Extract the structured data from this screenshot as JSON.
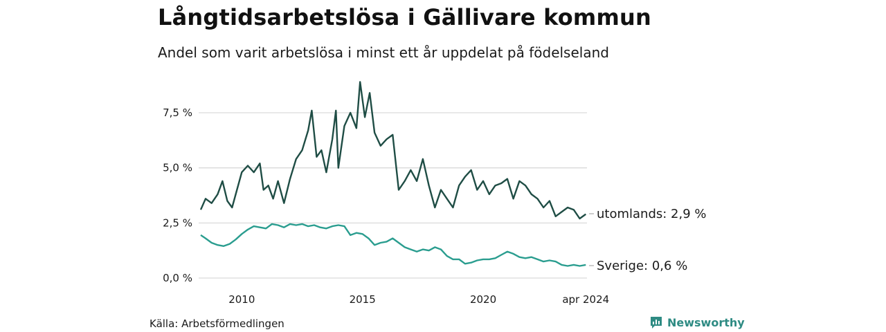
{
  "title": "Långtidsarbetslösa i Gällivare kommun",
  "subtitle": "Andel som varit arbetslösa i minst ett år uppdelat på födelseland",
  "source": "Källa: Arbetsförmedlingen",
  "brand": "Newsworthy",
  "colors": {
    "foreign": "#1f4d45",
    "sweden": "#2a9d8f",
    "grid": "#d9d9d9",
    "brand": "#2e8b83"
  },
  "icons": {
    "brand": "newsworthy-logo-icon"
  },
  "chart_data": {
    "type": "line",
    "title": "Långtidsarbetslösa i Gällivare kommun",
    "ylabel": "",
    "xlabel": "",
    "ylim": [
      0,
      8.8
    ],
    "xlim": [
      2008.3,
      2024.3
    ],
    "y_ticks": [
      0,
      2.5,
      5.0,
      7.5
    ],
    "y_tick_labels": [
      "0,0 %",
      "2,5 %",
      "5,0 %",
      "7,5 %"
    ],
    "x_ticks": [
      2010,
      2015,
      2020,
      2024.25
    ],
    "x_tick_labels": [
      "2010",
      "2015",
      "2020",
      "apr 2024"
    ],
    "series": [
      {
        "name": "utomlands",
        "end_label": "utomlands: 2,9 %",
        "x": [
          2008.3,
          2008.5,
          2008.75,
          2009.0,
          2009.2,
          2009.4,
          2009.6,
          2009.8,
          2010.0,
          2010.25,
          2010.5,
          2010.75,
          2010.9,
          2011.1,
          2011.3,
          2011.5,
          2011.75,
          2012.0,
          2012.25,
          2012.5,
          2012.75,
          2012.9,
          2013.1,
          2013.3,
          2013.5,
          2013.75,
          2013.9,
          2014.0,
          2014.25,
          2014.5,
          2014.75,
          2014.9,
          2015.1,
          2015.3,
          2015.5,
          2015.75,
          2016.0,
          2016.25,
          2016.5,
          2016.75,
          2017.0,
          2017.25,
          2017.5,
          2017.75,
          2018.0,
          2018.25,
          2018.5,
          2018.75,
          2019.0,
          2019.25,
          2019.5,
          2019.75,
          2020.0,
          2020.25,
          2020.5,
          2020.75,
          2021.0,
          2021.25,
          2021.5,
          2021.75,
          2022.0,
          2022.25,
          2022.5,
          2022.75,
          2023.0,
          2023.25,
          2023.5,
          2023.75,
          2024.0,
          2024.25
        ],
        "values": [
          3.1,
          3.6,
          3.4,
          3.8,
          4.4,
          3.5,
          3.2,
          4.0,
          4.8,
          5.1,
          4.8,
          5.2,
          4.0,
          4.2,
          3.6,
          4.4,
          3.4,
          4.5,
          5.4,
          5.8,
          6.7,
          7.6,
          5.5,
          5.8,
          4.8,
          6.3,
          7.6,
          5.0,
          6.9,
          7.5,
          6.8,
          8.9,
          7.3,
          8.4,
          6.6,
          6.0,
          6.3,
          6.5,
          4.0,
          4.4,
          4.9,
          4.4,
          5.4,
          4.2,
          3.2,
          4.0,
          3.6,
          3.2,
          4.2,
          4.6,
          4.9,
          4.0,
          4.4,
          3.8,
          4.2,
          4.3,
          4.5,
          3.6,
          4.4,
          4.2,
          3.8,
          3.6,
          3.2,
          3.5,
          2.8,
          3.0,
          3.2,
          3.1,
          2.7,
          2.9
        ]
      },
      {
        "name": "Sverige",
        "end_label": "Sverige: 0,6 %",
        "x": [
          2008.3,
          2008.5,
          2008.75,
          2009.0,
          2009.25,
          2009.5,
          2009.75,
          2010.0,
          2010.25,
          2010.5,
          2010.75,
          2011.0,
          2011.25,
          2011.5,
          2011.75,
          2012.0,
          2012.25,
          2012.5,
          2012.75,
          2013.0,
          2013.25,
          2013.5,
          2013.75,
          2014.0,
          2014.25,
          2014.5,
          2014.75,
          2015.0,
          2015.25,
          2015.5,
          2015.75,
          2016.0,
          2016.25,
          2016.5,
          2016.75,
          2017.0,
          2017.25,
          2017.5,
          2017.75,
          2018.0,
          2018.25,
          2018.5,
          2018.75,
          2019.0,
          2019.25,
          2019.5,
          2019.75,
          2020.0,
          2020.25,
          2020.5,
          2020.75,
          2021.0,
          2021.25,
          2021.5,
          2021.75,
          2022.0,
          2022.25,
          2022.5,
          2022.75,
          2023.0,
          2023.25,
          2023.5,
          2023.75,
          2024.0,
          2024.25
        ],
        "values": [
          1.95,
          1.8,
          1.6,
          1.5,
          1.45,
          1.55,
          1.75,
          2.0,
          2.2,
          2.35,
          2.3,
          2.25,
          2.45,
          2.4,
          2.3,
          2.45,
          2.4,
          2.45,
          2.35,
          2.4,
          2.3,
          2.25,
          2.35,
          2.4,
          2.35,
          1.95,
          2.05,
          2.0,
          1.8,
          1.5,
          1.6,
          1.65,
          1.8,
          1.6,
          1.4,
          1.3,
          1.2,
          1.3,
          1.25,
          1.4,
          1.3,
          1.0,
          0.85,
          0.85,
          0.65,
          0.7,
          0.8,
          0.85,
          0.85,
          0.9,
          1.05,
          1.2,
          1.1,
          0.95,
          0.9,
          0.95,
          0.85,
          0.75,
          0.8,
          0.75,
          0.6,
          0.55,
          0.6,
          0.55,
          0.6
        ]
      }
    ]
  }
}
